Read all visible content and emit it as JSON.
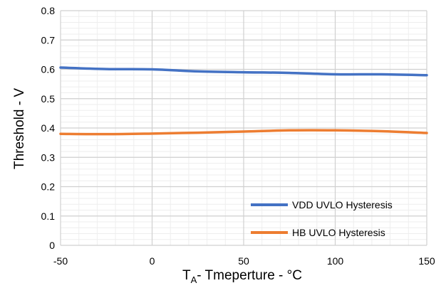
{
  "chart_data": {
    "type": "line",
    "title": "",
    "xlabel_main": "T",
    "xlabel_sub": "A",
    "xlabel_rest": "- Tmeperture - °C",
    "ylabel": "Threshold - V",
    "xlim": [
      -50,
      150
    ],
    "ylim": [
      0,
      0.8
    ],
    "x_ticks": [
      "-50",
      "0",
      "50",
      "100",
      "150"
    ],
    "y_ticks": [
      "0",
      "0.1",
      "0.2",
      "0.3",
      "0.4",
      "0.5",
      "0.6",
      "0.7",
      "0.8"
    ],
    "grid": true,
    "legend_position": "bottom-right",
    "series": [
      {
        "name": "VDD UVLO Hysteresis",
        "color": "#4472C4",
        "x": [
          -50,
          -25,
          0,
          25,
          50,
          75,
          100,
          125,
          150
        ],
        "y": [
          0.606,
          0.601,
          0.6,
          0.593,
          0.59,
          0.588,
          0.583,
          0.583,
          0.58
        ]
      },
      {
        "name": "HB UVLO Hysteresis",
        "color": "#ED7D31",
        "x": [
          -50,
          -25,
          0,
          25,
          50,
          75,
          100,
          125,
          150
        ],
        "y": [
          0.38,
          0.379,
          0.381,
          0.384,
          0.388,
          0.392,
          0.392,
          0.389,
          0.383
        ]
      }
    ]
  }
}
